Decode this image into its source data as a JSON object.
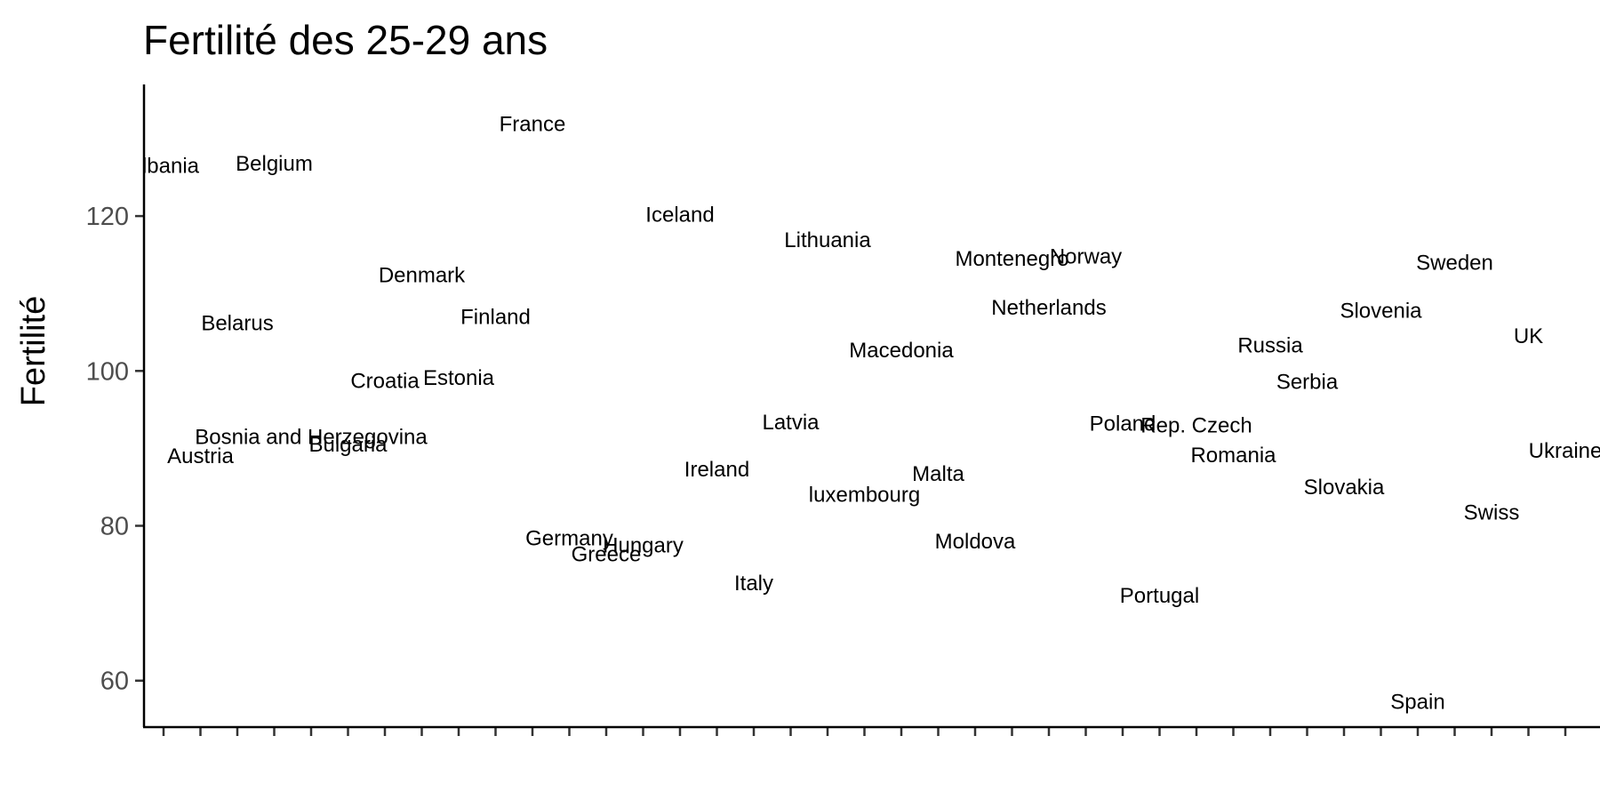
{
  "chart_data": {
    "type": "scatter",
    "title": "Fertilité des 25-29 ans",
    "xlabel": "",
    "ylabel": "Fertilité",
    "ylim": [
      54,
      137
    ],
    "yticks": [
      60,
      80,
      100,
      120
    ],
    "xlim": [
      0.5,
      40.5
    ],
    "points": [
      {
        "label": "Albania",
        "x": 1,
        "y": 126.5
      },
      {
        "label": "Austria",
        "x": 2,
        "y": 89.0
      },
      {
        "label": "Belarus",
        "x": 3,
        "y": 106.2
      },
      {
        "label": "Belgium",
        "x": 4,
        "y": 126.8
      },
      {
        "label": "Bosnia and Herzegovina",
        "x": 5,
        "y": 91.5
      },
      {
        "label": "Bulgaria",
        "x": 6,
        "y": 90.5
      },
      {
        "label": "Croatia",
        "x": 7,
        "y": 98.7
      },
      {
        "label": "Denmark",
        "x": 8,
        "y": 112.4
      },
      {
        "label": "Estonia",
        "x": 9,
        "y": 99.1
      },
      {
        "label": "Finland",
        "x": 10,
        "y": 107.0
      },
      {
        "label": "France",
        "x": 11,
        "y": 131.9
      },
      {
        "label": "Germany",
        "x": 12,
        "y": 78.4
      },
      {
        "label": "Greece",
        "x": 13,
        "y": 76.3
      },
      {
        "label": "Hungary",
        "x": 14,
        "y": 77.5
      },
      {
        "label": "Iceland",
        "x": 15,
        "y": 120.2
      },
      {
        "label": "Ireland",
        "x": 16,
        "y": 87.3
      },
      {
        "label": "Italy",
        "x": 17,
        "y": 72.6
      },
      {
        "label": "Latvia",
        "x": 18,
        "y": 93.4
      },
      {
        "label": "Lithuania",
        "x": 19,
        "y": 116.9
      },
      {
        "label": "luxembourg",
        "x": 20,
        "y": 84.0
      },
      {
        "label": "Macedonia",
        "x": 21,
        "y": 102.7
      },
      {
        "label": "Malta",
        "x": 22,
        "y": 86.7
      },
      {
        "label": "Moldova",
        "x": 23,
        "y": 78.0
      },
      {
        "label": "Montenegro",
        "x": 24,
        "y": 114.5
      },
      {
        "label": "Netherlands",
        "x": 25,
        "y": 108.2
      },
      {
        "label": "Norway",
        "x": 26,
        "y": 114.8
      },
      {
        "label": "Poland",
        "x": 27,
        "y": 93.2
      },
      {
        "label": "Portugal",
        "x": 28,
        "y": 71.0
      },
      {
        "label": "Rep. Czech",
        "x": 29,
        "y": 93.0
      },
      {
        "label": "Romania",
        "x": 30,
        "y": 89.1
      },
      {
        "label": "Russia",
        "x": 31,
        "y": 103.3
      },
      {
        "label": "Serbia",
        "x": 32,
        "y": 98.6
      },
      {
        "label": "Slovakia",
        "x": 33,
        "y": 85.0
      },
      {
        "label": "Slovenia",
        "x": 34,
        "y": 107.8
      },
      {
        "label": "Spain",
        "x": 35,
        "y": 57.3
      },
      {
        "label": "Sweden",
        "x": 36,
        "y": 114.0
      },
      {
        "label": "Swiss",
        "x": 37,
        "y": 81.7
      },
      {
        "label": "UK",
        "x": 38,
        "y": 104.5
      },
      {
        "label": "Ukraine",
        "x": 39,
        "y": 89.7
      }
    ],
    "grid": false,
    "legend": "none"
  }
}
